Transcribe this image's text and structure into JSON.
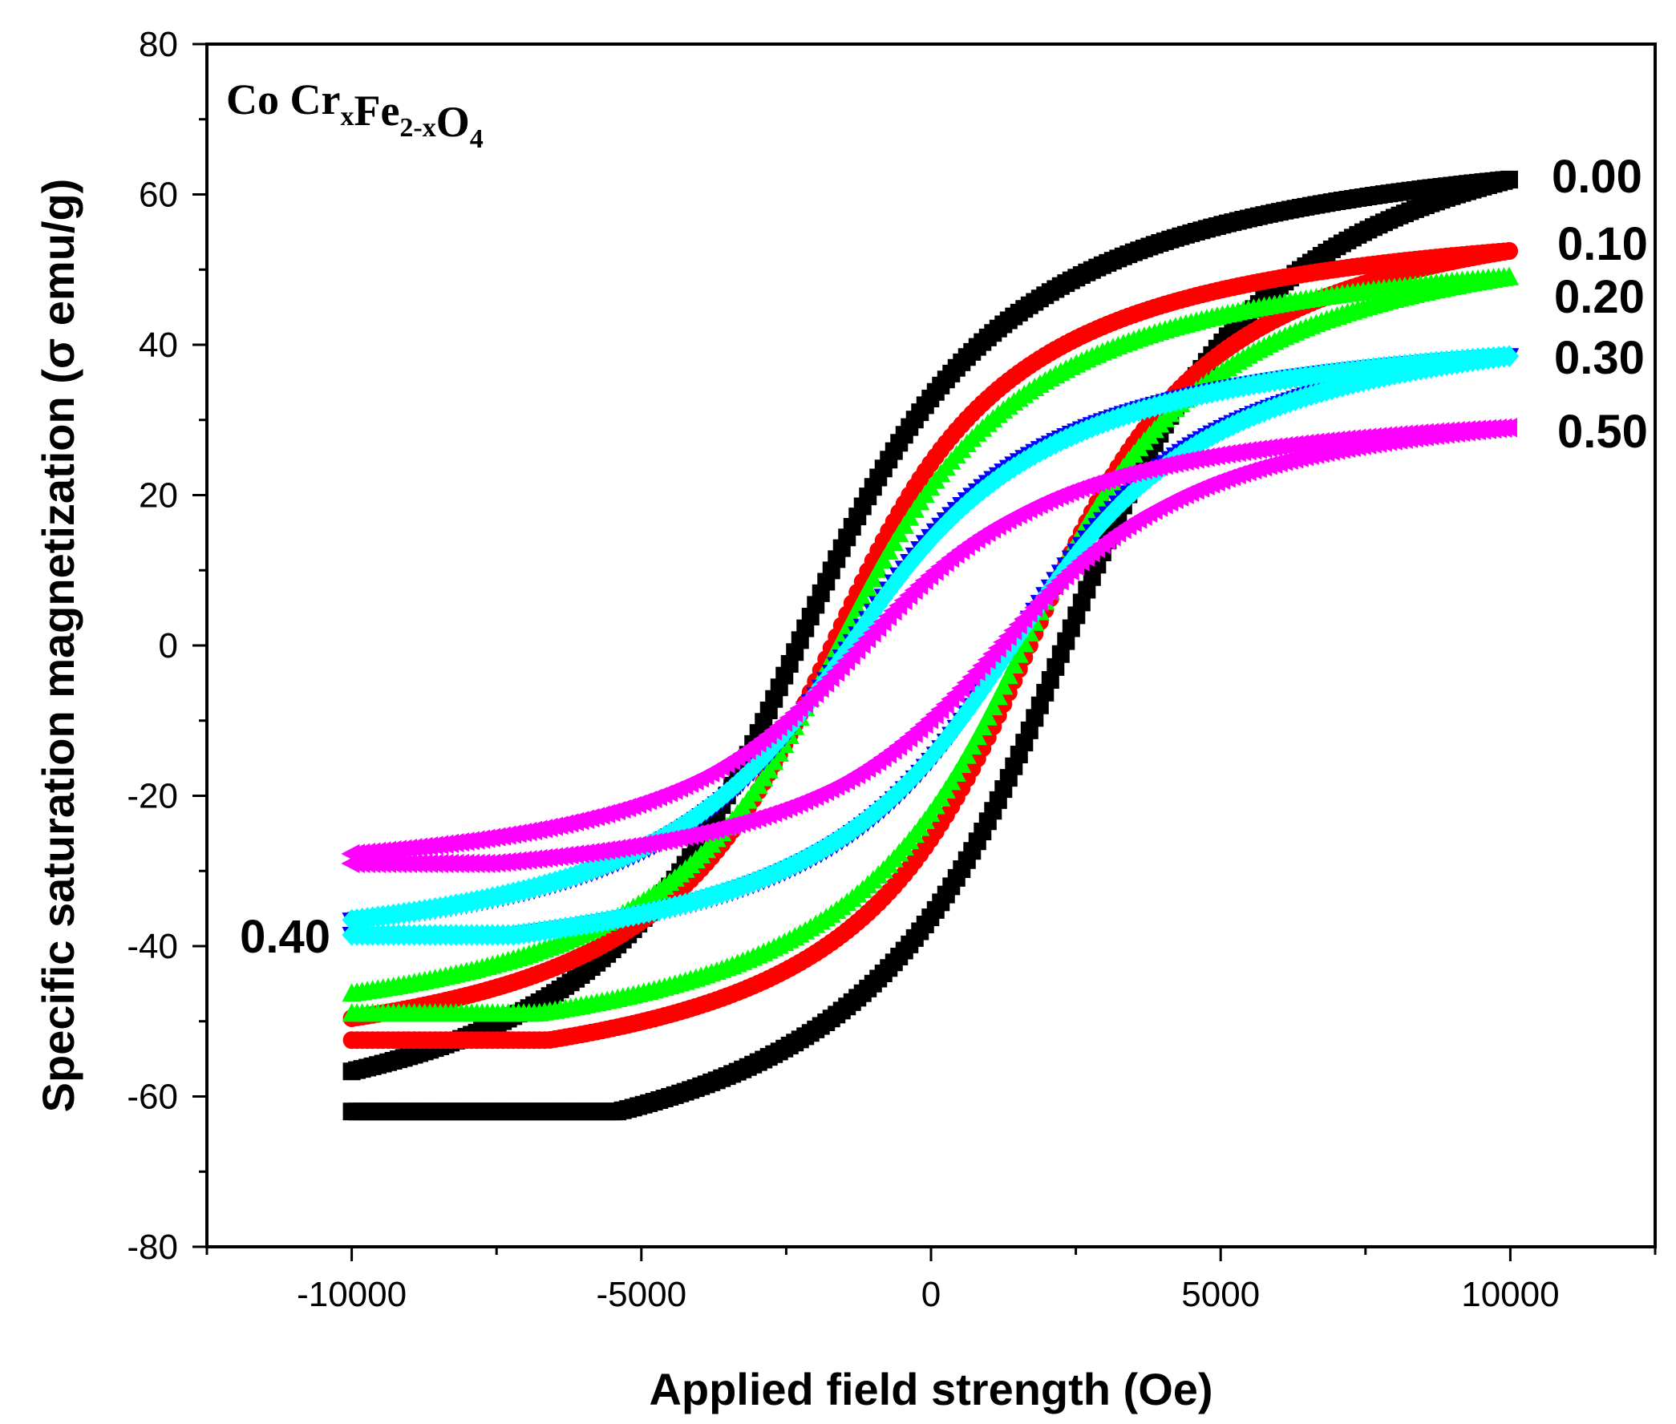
{
  "chart_data": {
    "type": "line",
    "title": "",
    "xlabel": "Applied field strength (Oe)",
    "ylabel": "Specific saturation magnetization (σ emu/g)",
    "xlim": [
      -12500,
      12500
    ],
    "ylim": [
      -80,
      80
    ],
    "xticks": [
      -10000,
      -5000,
      0,
      5000,
      10000
    ],
    "yticks": [
      -80,
      -60,
      -40,
      -20,
      0,
      20,
      40,
      60,
      80
    ],
    "grid": false,
    "legend": "none",
    "annotation": {
      "formula_parts": [
        {
          "text": "Co Cr",
          "sub": false
        },
        {
          "text": "x",
          "sub": true
        },
        {
          "text": "Fe",
          "sub": false
        },
        {
          "text": "2-x",
          "sub": true
        },
        {
          "text": "O",
          "sub": false
        },
        {
          "text": "4",
          "sub": true
        }
      ]
    },
    "series": [
      {
        "name": "0.00",
        "color": "#000000",
        "marker": "square",
        "Ms": 62,
        "Hc": 2300,
        "H0": 2600
      },
      {
        "name": "0.10",
        "color": "#ff0000",
        "marker": "circle",
        "Ms": 52.5,
        "Hc": 1700,
        "H0": 2300
      },
      {
        "name": "0.20",
        "color": "#00ff00",
        "marker": "triangle-up",
        "Ms": 49,
        "Hc": 1600,
        "H0": 2400
      },
      {
        "name": "0.40",
        "color": "#0000ff",
        "marker": "triangle-down",
        "Ms": 38.5,
        "Hc": 1400,
        "H0": 2500
      },
      {
        "name": "0.30",
        "color": "#00ffff",
        "marker": "diamond",
        "Ms": 38.5,
        "Hc": 1400,
        "H0": 2600
      },
      {
        "name": "0.50",
        "color": "#ff00ff",
        "marker": "triangle-left",
        "Ms": 29,
        "Hc": 1200,
        "H0": 2600
      }
    ]
  }
}
